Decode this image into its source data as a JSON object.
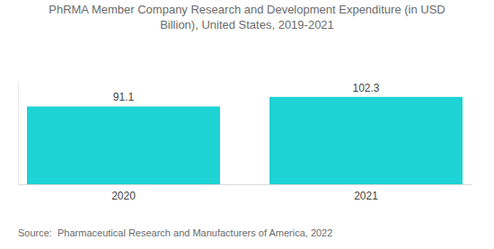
{
  "chart_data": {
    "type": "bar",
    "title": "PhRMA Member Company Research and Development Expenditure (in USD Billion), United States, 2019-2021",
    "categories": [
      "2020",
      "2021"
    ],
    "values": [
      91.1,
      102.3
    ],
    "color": "#1dd3d3",
    "ylim": [
      0,
      120
    ],
    "data_labels": true,
    "tick_labels": "x",
    "grid": false,
    "source": "Source:  Pharmaceutical Research and Manufacturers of America, 2022"
  }
}
